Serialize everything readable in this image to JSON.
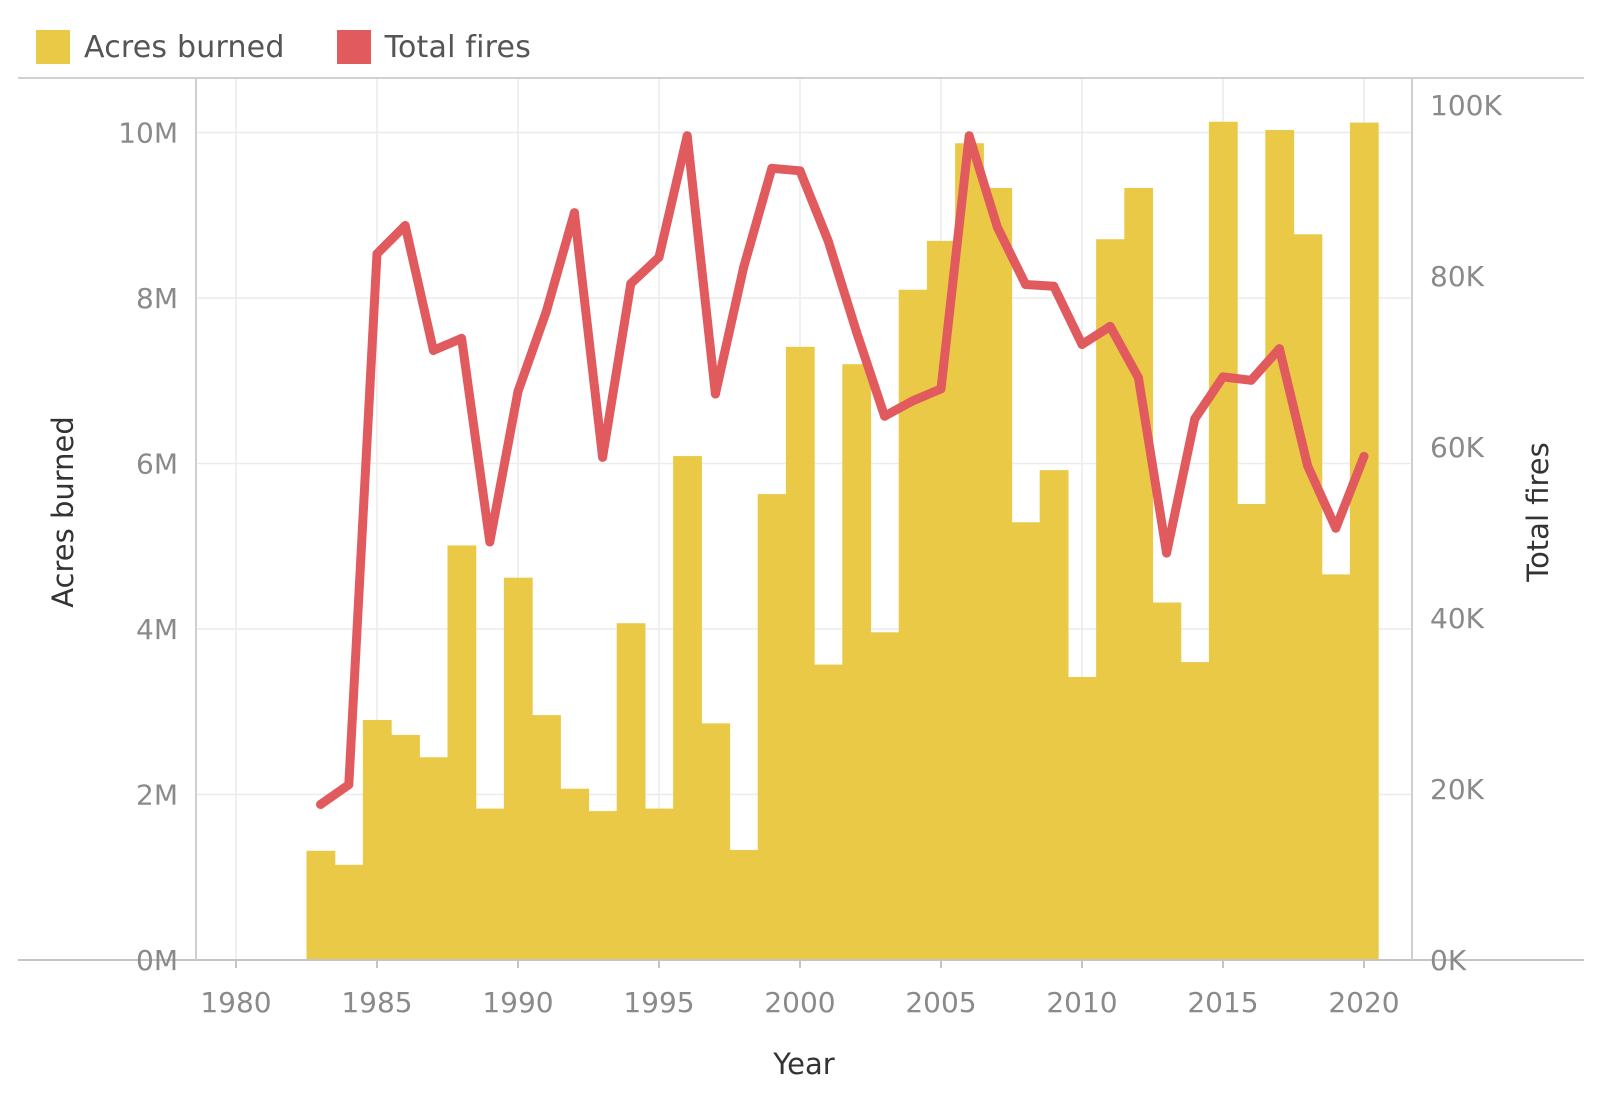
{
  "legend": {
    "items": [
      {
        "label": "Acres burned",
        "color": "#EAC947"
      },
      {
        "label": "Total fires",
        "color": "#E05A5E"
      }
    ]
  },
  "chart_data": {
    "type": "bar+line",
    "xlabel": "Year",
    "ylabel_left": "Acres burned",
    "ylabel_right": "Total fires",
    "x_ticks": [
      "1980",
      "1985",
      "1990",
      "1995",
      "2000",
      "2005",
      "2010",
      "2015",
      "2020"
    ],
    "y_left_ticks": [
      "0M",
      "2M",
      "4M",
      "6M",
      "8M",
      "10M"
    ],
    "y_right_ticks": [
      "0K",
      "20K",
      "40K",
      "60K",
      "80K",
      "100K"
    ],
    "xlim": [
      1978.5,
      2022
    ],
    "ylim_left": [
      0,
      10500000
    ],
    "ylim_right": [
      0,
      100000
    ],
    "grid": true,
    "legend_position": "top-left",
    "series": [
      {
        "name": "Acres burned",
        "type": "bar",
        "color": "#EAC947",
        "x": [
          1983,
          1984,
          1985,
          1986,
          1987,
          1988,
          1989,
          1990,
          1991,
          1992,
          1993,
          1994,
          1995,
          1996,
          1997,
          1998,
          1999,
          2000,
          2001,
          2002,
          2003,
          2004,
          2005,
          2006,
          2007,
          2008,
          2009,
          2010,
          2011,
          2012,
          2013,
          2014,
          2015,
          2016,
          2017,
          2018,
          2019,
          2020
        ],
        "values": [
          1320000,
          1150000,
          2900000,
          2720000,
          2450000,
          5010000,
          1830000,
          4620000,
          2960000,
          2070000,
          1800000,
          4070000,
          1830000,
          6090000,
          2860000,
          1330000,
          5630000,
          7410000,
          3570000,
          7200000,
          3960000,
          8100000,
          8690000,
          9870000,
          9330000,
          5290000,
          5920000,
          3420000,
          8710000,
          9330000,
          4320000,
          3600000,
          10130000,
          5510000,
          10030000,
          8770000,
          4660000,
          10120000
        ]
      },
      {
        "name": "Total fires",
        "type": "line",
        "color": "#E05A5E",
        "x": [
          1983,
          1984,
          1985,
          1986,
          1987,
          1988,
          1989,
          1990,
          1991,
          1992,
          1993,
          1994,
          1995,
          1996,
          1997,
          1998,
          1999,
          2000,
          2001,
          2002,
          2003,
          2004,
          2005,
          2006,
          2007,
          2008,
          2009,
          2010,
          2011,
          2012,
          2013,
          2014,
          2015,
          2016,
          2017,
          2018,
          2019,
          2020
        ],
        "values": [
          18200,
          20500,
          82600,
          85900,
          71300,
          72700,
          48900,
          66500,
          75800,
          87400,
          58800,
          79100,
          82200,
          96400,
          66200,
          81000,
          92600,
          92300,
          84100,
          73500,
          63600,
          65400,
          66800,
          96400,
          85700,
          79000,
          78800,
          72000,
          74100,
          68100,
          47600,
          63300,
          68200,
          67800,
          71500,
          57800,
          50500,
          58900
        ]
      }
    ]
  }
}
